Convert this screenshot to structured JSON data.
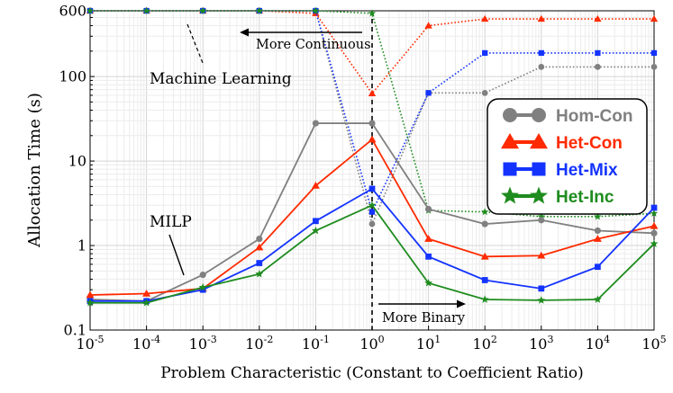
{
  "chart_data": {
    "type": "line",
    "title": "",
    "xlabel": "Problem Characteristic (Constant to Coefficient Ratio)",
    "ylabel": "Allocation Time (s)",
    "x_scale": "log",
    "y_scale": "log",
    "xlim": [
      1e-05,
      100000
    ],
    "ylim": [
      0.1,
      600
    ],
    "x": [
      1e-05,
      0.0001,
      0.001,
      0.01,
      0.1,
      1,
      10,
      100,
      1000,
      10000,
      100000
    ],
    "x_tick_labels": [
      {
        "base": "10",
        "exp": "-5"
      },
      {
        "base": "10",
        "exp": "-4"
      },
      {
        "base": "10",
        "exp": "-3"
      },
      {
        "base": "10",
        "exp": "-2"
      },
      {
        "base": "10",
        "exp": "-1"
      },
      {
        "base": "10",
        "exp": "0"
      },
      {
        "base": "10",
        "exp": "1"
      },
      {
        "base": "10",
        "exp": "2"
      },
      {
        "base": "10",
        "exp": "3"
      },
      {
        "base": "10",
        "exp": "4"
      },
      {
        "base": "10",
        "exp": "5"
      }
    ],
    "y_ticks": [
      {
        "value": 0.1,
        "label": "0.1"
      },
      {
        "value": 1,
        "label": "1"
      },
      {
        "value": 10,
        "label": "10"
      },
      {
        "value": 100,
        "label": "100"
      },
      {
        "value": 600,
        "label": "600"
      }
    ],
    "grid": true,
    "vertical_reference_line_x": 1,
    "legend_position": "right",
    "series": [
      {
        "name": "Hom-Con",
        "method": "MILP",
        "color": "#808080",
        "marker": "circle",
        "line": "solid",
        "values": [
          0.23,
          0.22,
          0.45,
          1.2,
          28,
          28,
          2.7,
          1.8,
          2.0,
          1.5,
          1.4
        ]
      },
      {
        "name": "Het-Con",
        "method": "MILP",
        "color": "#ff2a00",
        "marker": "triangle",
        "line": "solid",
        "values": [
          0.26,
          0.27,
          0.31,
          0.95,
          5.1,
          18,
          1.2,
          0.74,
          0.76,
          1.2,
          1.7
        ]
      },
      {
        "name": "Het-Mix",
        "method": "MILP",
        "color": "#1433ff",
        "marker": "square",
        "line": "solid",
        "values": [
          0.22,
          0.22,
          0.3,
          0.62,
          1.95,
          4.7,
          0.74,
          0.39,
          0.31,
          0.56,
          2.8
        ]
      },
      {
        "name": "Het-Inc",
        "method": "MILP",
        "color": "#1e8c1e",
        "marker": "star",
        "line": "solid",
        "values": [
          0.21,
          0.21,
          0.32,
          0.46,
          1.5,
          3.0,
          0.36,
          0.23,
          0.225,
          0.23,
          1.05
        ]
      },
      {
        "name": "Hom-Con",
        "method": "Machine Learning",
        "color": "#808080",
        "marker": "circle",
        "line": "dotted",
        "values": [
          600,
          600,
          600,
          600,
          600,
          1.8,
          64,
          64,
          130,
          130,
          130
        ]
      },
      {
        "name": "Het-Con",
        "method": "Machine Learning",
        "color": "#ff2a00",
        "marker": "triangle",
        "line": "dotted",
        "values": [
          600,
          600,
          600,
          600,
          560,
          63,
          400,
          480,
          480,
          480,
          480
        ]
      },
      {
        "name": "Het-Mix",
        "method": "Machine Learning",
        "color": "#1433ff",
        "marker": "square",
        "line": "dotted",
        "values": [
          600,
          600,
          600,
          600,
          600,
          2.5,
          64,
          190,
          190,
          190,
          190
        ]
      },
      {
        "name": "Het-Inc",
        "method": "Machine Learning",
        "color": "#1e8c1e",
        "marker": "star",
        "line": "dotted",
        "values": [
          600,
          600,
          600,
          600,
          600,
          560,
          2.6,
          2.5,
          2.2,
          2.2,
          2.4
        ]
      }
    ],
    "legend": [
      {
        "name": "Hom-Con",
        "color": "#808080",
        "marker": "circle"
      },
      {
        "name": "Het-Con",
        "color": "#ff2a00",
        "marker": "triangle"
      },
      {
        "name": "Het-Mix",
        "color": "#1433ff",
        "marker": "square"
      },
      {
        "name": "Het-Inc",
        "color": "#1e8c1e",
        "marker": "star"
      }
    ],
    "annotations": {
      "more_continuous": "More Continuous",
      "more_binary": "More Binary",
      "machine_learning": "Machine Learning",
      "milp": "MILP"
    }
  }
}
